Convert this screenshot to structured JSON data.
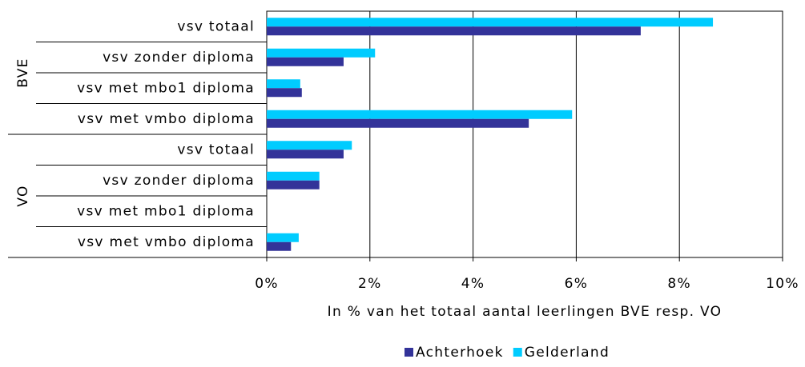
{
  "chart_data": {
    "type": "hbar",
    "xlabel": "In % van het totaal aantal leerlingen BVE resp. VO",
    "category_groups": [
      {
        "label": "BVE",
        "categories": [
          "vsv totaal",
          "vsv zonder diploma",
          "vsv met mbo1 diploma",
          "vsv met vmbo diploma"
        ]
      },
      {
        "label": "VO",
        "categories": [
          "vsv totaal",
          "vsv zonder diploma",
          "vsv met mbo1 diploma",
          "vsv met vmbo diploma"
        ]
      }
    ],
    "series": [
      {
        "name": "Gelderland",
        "color": "#00ccff",
        "values": [
          8.65,
          2.1,
          0.65,
          5.92,
          1.65,
          1.02,
          0,
          0.62
        ]
      },
      {
        "name": "Achterhoek",
        "color": "#333399",
        "values": [
          7.25,
          1.49,
          0.68,
          5.08,
          1.49,
          1.02,
          0,
          0.47
        ]
      }
    ],
    "legend_order": [
      1,
      0
    ],
    "xlim": [
      0,
      10
    ],
    "xticks": [
      {
        "value": 0,
        "label": "0%"
      },
      {
        "value": 2,
        "label": "2%"
      },
      {
        "value": 4,
        "label": "4%"
      },
      {
        "value": 6,
        "label": "6%"
      },
      {
        "value": 8,
        "label": "8%"
      },
      {
        "value": 10,
        "label": "10%"
      }
    ],
    "grid": true
  }
}
